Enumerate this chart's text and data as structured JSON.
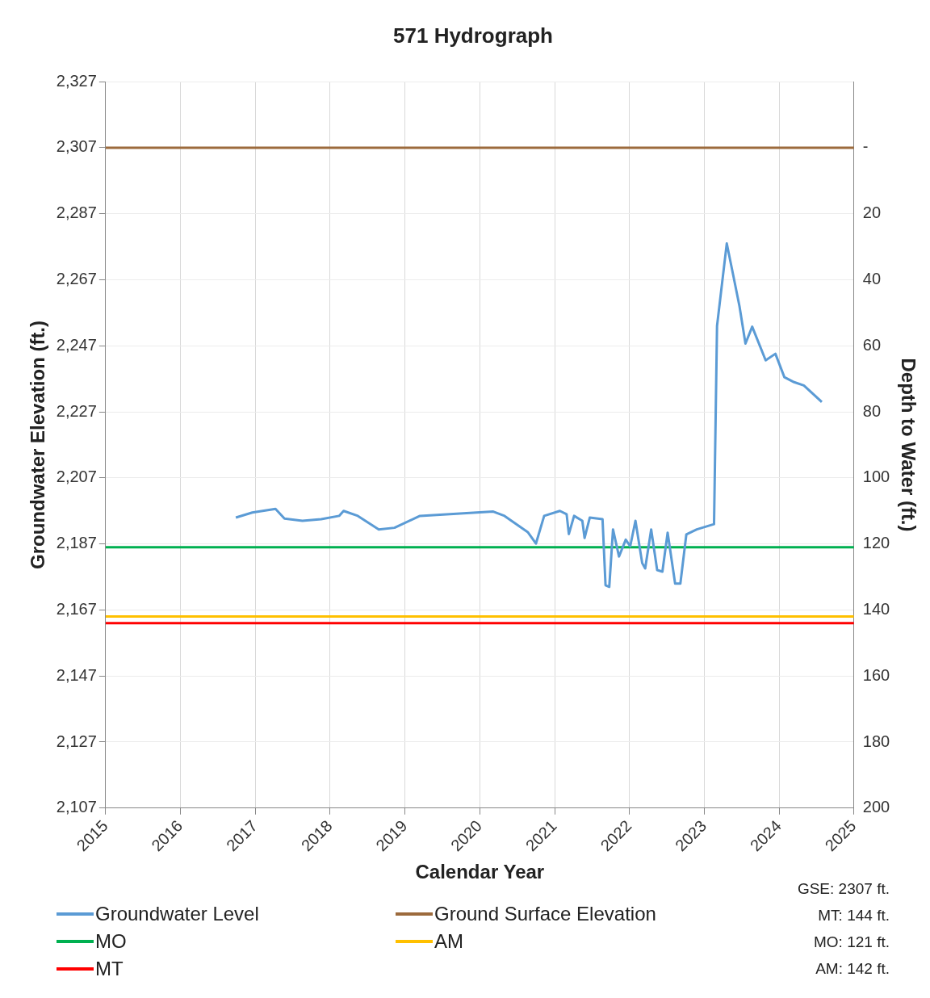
{
  "chart_data": {
    "type": "line",
    "title": "571 Hydrograph",
    "xlabel": "Calendar Year",
    "ylabel": "Groundwater Elevation (ft.)",
    "y2label": "Depth to Water (ft.)",
    "xlim": [
      2015,
      2025
    ],
    "xticks": [
      2015,
      2016,
      2017,
      2018,
      2019,
      2020,
      2021,
      2022,
      2023,
      2024,
      2025
    ],
    "ylim": [
      2107,
      2327
    ],
    "yticks": [
      {
        "value": 2107,
        "label": "2,107"
      },
      {
        "value": 2127,
        "label": "2,127"
      },
      {
        "value": 2147,
        "label": "2,147"
      },
      {
        "value": 2167,
        "label": "2,167"
      },
      {
        "value": 2187,
        "label": "2,187"
      },
      {
        "value": 2207,
        "label": "2,207"
      },
      {
        "value": 2227,
        "label": "2,227"
      },
      {
        "value": 2247,
        "label": "2,247"
      },
      {
        "value": 2267,
        "label": "2,267"
      },
      {
        "value": 2287,
        "label": "2,287"
      },
      {
        "value": 2307,
        "label": "2,307"
      },
      {
        "value": 2327,
        "label": "2,327"
      }
    ],
    "y2lim": [
      200,
      -20
    ],
    "y2ticks": [
      {
        "value": 0,
        "label": "-"
      },
      20,
      40,
      60,
      80,
      100,
      120,
      140,
      160,
      180,
      200
    ],
    "grid": true,
    "legend": "bottom left",
    "line_style": "solid",
    "series": [
      {
        "name": "Groundwater Level",
        "color": "#5b9bd5",
        "x": [
          2016.74,
          2016.96,
          2017.27,
          2017.39,
          2017.63,
          2017.88,
          2018.12,
          2018.18,
          2018.37,
          2018.65,
          2018.86,
          2019.2,
          2020.18,
          2020.33,
          2020.64,
          2020.75,
          2020.86,
          2021.07,
          2021.16,
          2021.19,
          2021.26,
          2021.37,
          2021.4,
          2021.47,
          2021.64,
          2021.68,
          2021.73,
          2021.78,
          2021.86,
          2021.95,
          2022.01,
          2022.08,
          2022.17,
          2022.21,
          2022.29,
          2022.37,
          2022.44,
          2022.51,
          2022.61,
          2022.68,
          2022.76,
          2022.9,
          2023.13,
          2023.17,
          2023.3,
          2023.39,
          2023.47,
          2023.55,
          2023.64,
          2023.82,
          2023.95,
          2024.07,
          2024.2,
          2024.33,
          2024.57
        ],
        "values": [
          2195,
          2196.5,
          2197.6,
          2194.7,
          2194,
          2194.5,
          2195.5,
          2197,
          2195.5,
          2191.4,
          2191.9,
          2195.5,
          2196.8,
          2195.5,
          2190.6,
          2187.1,
          2195.5,
          2197,
          2196,
          2190,
          2195.5,
          2194,
          2188.8,
          2195,
          2194.5,
          2174.5,
          2174,
          2191.4,
          2183.2,
          2188.3,
          2186.3,
          2194,
          2181.2,
          2179.6,
          2191.4,
          2179.1,
          2178.6,
          2190.4,
          2175,
          2175,
          2189.9,
          2191.4,
          2193,
          2253,
          2278,
          2268,
          2259,
          2247.7,
          2252.8,
          2242.6,
          2244.6,
          2237.5,
          2236,
          2235,
          2230
        ]
      },
      {
        "name": "Ground Surface Elevation",
        "color": "#9c6a3c",
        "x": [
          2015,
          2025
        ],
        "values": [
          2307,
          2307
        ]
      },
      {
        "name": "MO",
        "color": "#00b050",
        "x": [
          2015,
          2025
        ],
        "values": [
          2186,
          2186
        ]
      },
      {
        "name": "AM",
        "color": "#ffc000",
        "x": [
          2015,
          2025
        ],
        "values": [
          2165,
          2165
        ]
      },
      {
        "name": "MT",
        "color": "#ff0000",
        "x": [
          2015,
          2025
        ],
        "values": [
          2163,
          2163
        ]
      }
    ],
    "annotations": [
      "GSE: 2307 ft.",
      "MT: 144 ft.",
      "MO: 121 ft.",
      "AM: 142 ft."
    ]
  }
}
